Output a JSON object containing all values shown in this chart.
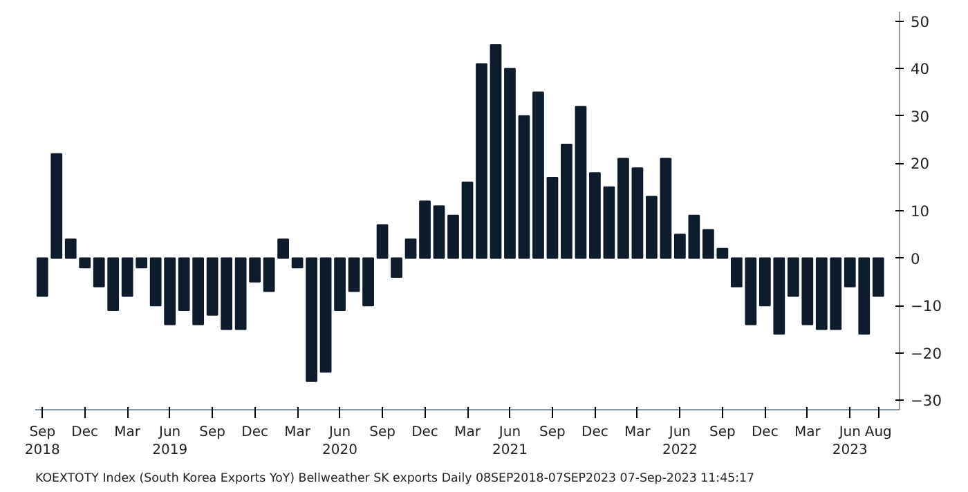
{
  "chart_data": {
    "type": "bar",
    "color": "#0d1b2a",
    "categories": [
      "Sep\n2018",
      null,
      null,
      "Dec",
      null,
      null,
      "Mar",
      null,
      null,
      "Jun\n2019",
      null,
      null,
      "Sep",
      null,
      null,
      "Dec",
      null,
      null,
      "Mar",
      null,
      null,
      "Jun\n2020",
      null,
      null,
      "Sep",
      null,
      null,
      "Dec",
      null,
      null,
      "Mar",
      null,
      null,
      "Jun\n2021",
      null,
      null,
      "Sep",
      null,
      null,
      "Dec",
      null,
      null,
      "Mar",
      null,
      null,
      "Jun\n2022",
      null,
      null,
      "Sep",
      null,
      null,
      "Dec",
      null,
      null,
      "Mar",
      null,
      null,
      "Jun\n2023",
      null,
      "Aug"
    ],
    "values": [
      -8,
      22,
      4,
      -2,
      -6,
      -11,
      -8,
      -2,
      -10,
      -14,
      -11,
      -14,
      -12,
      -15,
      -15,
      -5,
      -7,
      4,
      -2,
      -26,
      -24,
      -11,
      -7,
      -10,
      7,
      -4,
      4,
      12,
      11,
      9,
      16,
      41,
      45,
      40,
      30,
      35,
      17,
      24,
      32,
      18,
      15,
      21,
      19,
      13,
      21,
      5,
      9,
      6,
      2,
      -6,
      -14,
      -10,
      -16,
      -8,
      -14,
      -15,
      -15,
      -6,
      -16,
      -8
    ],
    "ylim": [
      -32,
      52
    ],
    "yticks": [
      -30,
      -20,
      -10,
      0,
      10,
      20,
      30,
      40,
      50
    ],
    "grid": false,
    "annotations": [
      "KOEXTOTY Index (South Korea Exports YoY) Bellweather SK exports  Daily 08SEP2018-07SEP2023  07-Sep-2023 11:45:17"
    ]
  }
}
